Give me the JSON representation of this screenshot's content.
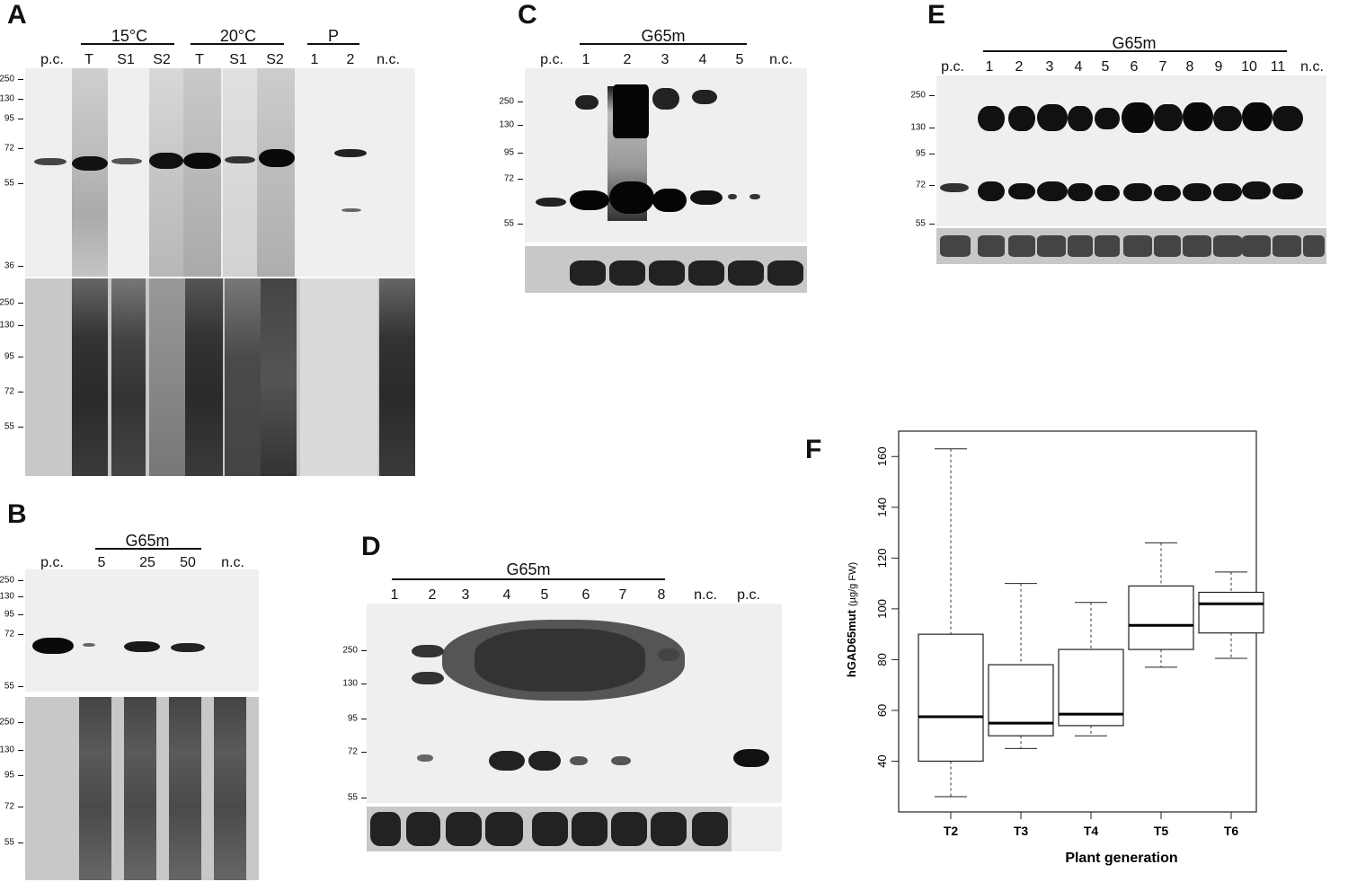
{
  "panels": {
    "A": {
      "letter": "A",
      "groups": [
        "15°C",
        "20°C",
        "P"
      ],
      "lanes": [
        "p.c.",
        "T",
        "S1",
        "S2",
        "T",
        "S1",
        "S2",
        "1",
        "2",
        "n.c."
      ],
      "mw_top": [
        "250",
        "130",
        "95",
        "72",
        "55",
        "36"
      ],
      "mw_bottom": [
        "250",
        "130",
        "95",
        "72",
        "55"
      ]
    },
    "B": {
      "letter": "B",
      "group": "G65m",
      "lanes": [
        "p.c.",
        "5",
        "25",
        "50",
        "n.c."
      ],
      "mw_top": [
        "250",
        "130",
        "95",
        "72",
        "55"
      ],
      "mw_bottom": [
        "250",
        "130",
        "95",
        "72",
        "55"
      ]
    },
    "C": {
      "letter": "C",
      "group": "G65m",
      "lanes": [
        "p.c.",
        "1",
        "2",
        "3",
        "4",
        "5",
        "n.c."
      ],
      "mw": [
        "250",
        "130",
        "95",
        "72",
        "55"
      ]
    },
    "D": {
      "letter": "D",
      "group": "G65m",
      "lanes": [
        "1",
        "2",
        "3",
        "4",
        "5",
        "6",
        "7",
        "8",
        "n.c.",
        "p.c."
      ],
      "mw": [
        "250",
        "130",
        "95",
        "72",
        "55"
      ]
    },
    "E": {
      "letter": "E",
      "group": "G65m",
      "lanes": [
        "p.c.",
        "1",
        "2",
        "3",
        "4",
        "5",
        "6",
        "7",
        "8",
        "9",
        "10",
        "11",
        "n.c."
      ],
      "mw": [
        "250",
        "130",
        "95",
        "72",
        "55"
      ]
    },
    "F": {
      "letter": "F"
    }
  },
  "chart_data": {
    "type": "box",
    "title": "",
    "xlabel": "Plant generation",
    "ylabel": "hGAD65mut",
    "ylabel_unit": "(µg/g FW)",
    "categories": [
      "T2",
      "T3",
      "T4",
      "T5",
      "T6"
    ],
    "ylim": [
      20,
      170
    ],
    "yticks": [
      40,
      60,
      80,
      100,
      120,
      140,
      160
    ],
    "boxes": [
      {
        "name": "T2",
        "min": 26,
        "q1": 40,
        "median": 57.5,
        "q3": 90,
        "max": 163
      },
      {
        "name": "T3",
        "min": 45,
        "q1": 50,
        "median": 55,
        "q3": 78,
        "max": 110
      },
      {
        "name": "T4",
        "min": 50,
        "q1": 54,
        "median": 58.5,
        "q3": 84,
        "max": 102.5
      },
      {
        "name": "T5",
        "min": 77,
        "q1": 84,
        "median": 93.5,
        "q3": 109,
        "max": 126
      },
      {
        "name": "T6",
        "min": 80.5,
        "q1": 90.5,
        "median": 102,
        "q3": 106.5,
        "max": 114.5
      }
    ],
    "grid": false
  }
}
